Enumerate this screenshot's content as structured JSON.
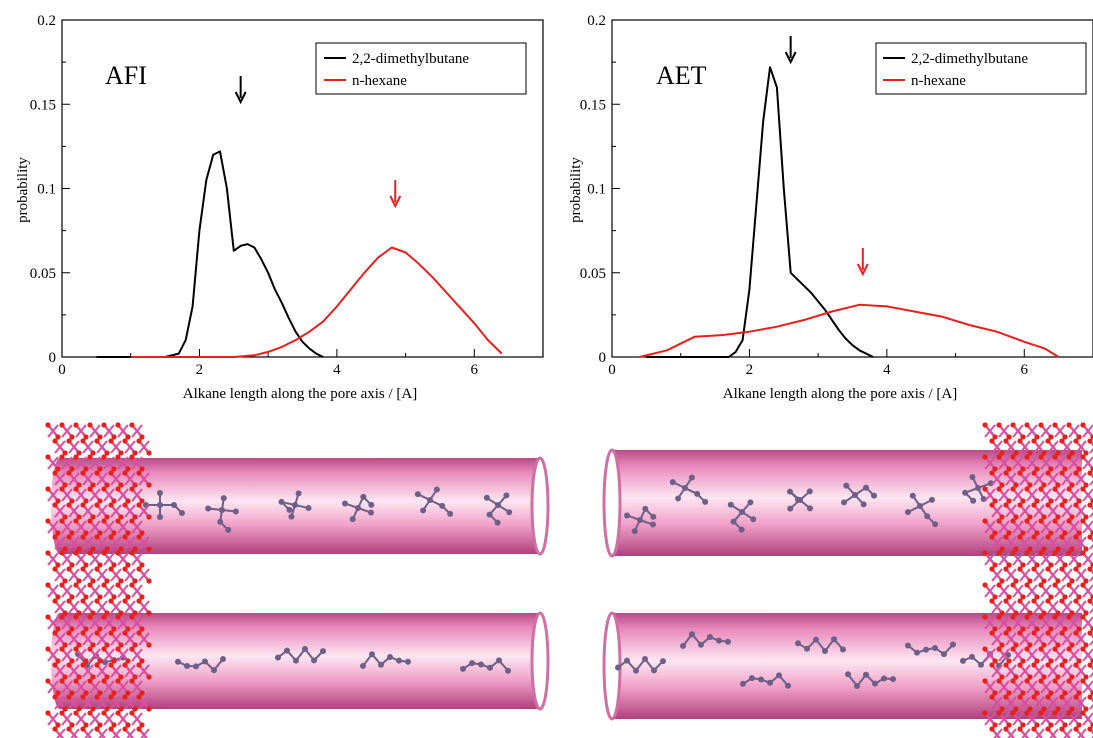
{
  "chart_data": [
    {
      "type": "line",
      "panel_label": "AFI",
      "xlabel": "Alkane length along the pore axis / [A]",
      "ylabel": "probability",
      "xlim": [
        0,
        7
      ],
      "ylim": [
        0,
        0.2
      ],
      "x_ticks": [
        0,
        2,
        4,
        6
      ],
      "y_ticks": [
        0,
        0.05,
        0.1,
        0.15,
        0.2
      ],
      "y_tick_labels": [
        "0",
        "0.05",
        "0.1",
        "0.15",
        "0.2"
      ],
      "legend_position": "top-right",
      "series": [
        {
          "name": "2,2-dimethylbutane",
          "color": "#000000",
          "x": [
            0.5,
            1.5,
            1.7,
            1.8,
            1.9,
            2.0,
            2.1,
            2.2,
            2.3,
            2.4,
            2.5,
            2.6,
            2.7,
            2.8,
            2.9,
            3.0,
            3.1,
            3.2,
            3.3,
            3.4,
            3.5,
            3.6,
            3.7,
            3.8
          ],
          "y": [
            0,
            0,
            0.002,
            0.01,
            0.03,
            0.075,
            0.105,
            0.12,
            0.122,
            0.1,
            0.063,
            0.066,
            0.067,
            0.065,
            0.058,
            0.05,
            0.04,
            0.032,
            0.023,
            0.015,
            0.009,
            0.005,
            0.002,
            0
          ]
        },
        {
          "name": "n-hexane",
          "color": "#e8201c",
          "x": [
            1.0,
            2.5,
            2.8,
            3.0,
            3.2,
            3.4,
            3.6,
            3.8,
            4.0,
            4.2,
            4.4,
            4.6,
            4.8,
            5.0,
            5.2,
            5.4,
            5.6,
            5.8,
            6.0,
            6.2,
            6.4
          ],
          "y": [
            0,
            0,
            0.001,
            0.003,
            0.006,
            0.01,
            0.015,
            0.021,
            0.03,
            0.04,
            0.05,
            0.059,
            0.065,
            0.062,
            0.055,
            0.047,
            0.038,
            0.029,
            0.02,
            0.01,
            0.002
          ]
        }
      ],
      "annotations": [
        {
          "type": "arrow",
          "x": 2.6,
          "color": "#000000"
        },
        {
          "type": "arrow",
          "x": 4.85,
          "color": "#e8201c"
        }
      ]
    },
    {
      "type": "line",
      "panel_label": "AET",
      "xlabel": "Alkane length along the pore axis / [A]",
      "ylabel": "probability",
      "xlim": [
        0,
        7
      ],
      "ylim": [
        0,
        0.2
      ],
      "x_ticks": [
        0,
        2,
        4,
        6
      ],
      "y_ticks": [
        0,
        0.05,
        0.1,
        0.15,
        0.2
      ],
      "y_tick_labels": [
        "0",
        "0.05",
        "0.1",
        "0.15",
        "0.2"
      ],
      "legend_position": "top-right",
      "series": [
        {
          "name": "2,2-dimethylbutane",
          "color": "#000000",
          "x": [
            0.5,
            1.7,
            1.8,
            1.9,
            2.0,
            2.1,
            2.2,
            2.3,
            2.4,
            2.5,
            2.6,
            2.7,
            2.8,
            2.9,
            3.0,
            3.1,
            3.2,
            3.3,
            3.4,
            3.5,
            3.6,
            3.7,
            3.8
          ],
          "y": [
            0,
            0,
            0.003,
            0.01,
            0.04,
            0.09,
            0.14,
            0.172,
            0.16,
            0.1,
            0.05,
            0.046,
            0.042,
            0.038,
            0.033,
            0.028,
            0.022,
            0.016,
            0.011,
            0.007,
            0.004,
            0.002,
            0
          ]
        },
        {
          "name": "n-hexane",
          "color": "#e8201c",
          "x": [
            0.4,
            0.8,
            1.2,
            1.6,
            2.0,
            2.4,
            2.8,
            3.2,
            3.6,
            4.0,
            4.4,
            4.8,
            5.2,
            5.6,
            6.0,
            6.3,
            6.5
          ],
          "y": [
            0,
            0.004,
            0.012,
            0.013,
            0.015,
            0.018,
            0.022,
            0.027,
            0.031,
            0.03,
            0.027,
            0.024,
            0.019,
            0.015,
            0.009,
            0.005,
            0
          ]
        }
      ],
      "annotations": [
        {
          "type": "arrow",
          "x": 2.6,
          "color": "#000000"
        },
        {
          "type": "arrow",
          "x": 3.65,
          "color": "#e8201c"
        }
      ]
    }
  ],
  "colors": {
    "tube": "#f3a6cb",
    "tube_dark": "#c8508e",
    "framework_o": "#e8201c",
    "framework_t": "#d94fa0",
    "molecule": "#6d5f86"
  }
}
